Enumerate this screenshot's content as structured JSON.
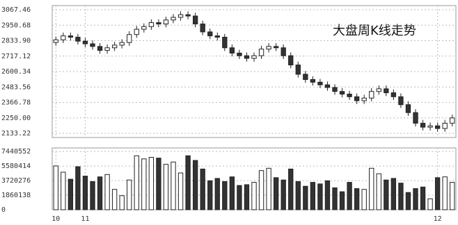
{
  "chart_data": {
    "type": "candlestick",
    "title": "大盘周K线走势",
    "categories": [
      "10",
      null,
      null,
      null,
      "11",
      null,
      null,
      null,
      null,
      null,
      null,
      null,
      null,
      null,
      null,
      null,
      null,
      null,
      null,
      null,
      null,
      null,
      null,
      null,
      null,
      null,
      null,
      null,
      null,
      null,
      null,
      null,
      null,
      null,
      null,
      null,
      null,
      null,
      null,
      null,
      null,
      null,
      null,
      null,
      null,
      null,
      null,
      null,
      null,
      null,
      null,
      null,
      "12",
      null,
      null
    ],
    "open": [
      2820,
      2840,
      2870,
      2860,
      2830,
      2810,
      2790,
      2760,
      2780,
      2800,
      2820,
      2880,
      2920,
      2940,
      2970,
      2960,
      2990,
      3010,
      3030,
      3020,
      2960,
      2900,
      2870,
      2860,
      2780,
      2740,
      2720,
      2700,
      2720,
      2770,
      2790,
      2780,
      2720,
      2650,
      2580,
      2540,
      2520,
      2500,
      2480,
      2450,
      2430,
      2410,
      2380,
      2400,
      2450,
      2470,
      2440,
      2410,
      2350,
      2290,
      2210,
      2180,
      2190,
      2170,
      2210
    ],
    "high": [
      2865,
      2895,
      2895,
      2885,
      2855,
      2835,
      2815,
      2805,
      2825,
      2845,
      2905,
      2945,
      2965,
      2995,
      2995,
      3015,
      3035,
      3055,
      3055,
      3045,
      2985,
      2925,
      2895,
      2885,
      2805,
      2765,
      2745,
      2745,
      2795,
      2815,
      2815,
      2805,
      2745,
      2675,
      2605,
      2565,
      2545,
      2525,
      2505,
      2475,
      2455,
      2435,
      2425,
      2475,
      2495,
      2495,
      2465,
      2435,
      2375,
      2315,
      2235,
      2215,
      2215,
      2235,
      2275
    ],
    "low": [
      2795,
      2815,
      2835,
      2805,
      2785,
      2765,
      2735,
      2735,
      2755,
      2775,
      2795,
      2855,
      2895,
      2915,
      2935,
      2935,
      2965,
      2985,
      2995,
      2935,
      2875,
      2845,
      2835,
      2755,
      2715,
      2695,
      2675,
      2675,
      2695,
      2745,
      2755,
      2695,
      2625,
      2555,
      2515,
      2495,
      2475,
      2455,
      2425,
      2405,
      2385,
      2355,
      2355,
      2375,
      2425,
      2415,
      2385,
      2325,
      2265,
      2185,
      2155,
      2155,
      2145,
      2145,
      2185
    ],
    "close": [
      2840,
      2870,
      2860,
      2830,
      2810,
      2790,
      2760,
      2780,
      2800,
      2820,
      2880,
      2920,
      2940,
      2970,
      2960,
      2990,
      3010,
      3030,
      3020,
      2960,
      2900,
      2870,
      2860,
      2780,
      2740,
      2720,
      2700,
      2720,
      2770,
      2790,
      2780,
      2720,
      2650,
      2580,
      2540,
      2520,
      2500,
      2480,
      2450,
      2430,
      2410,
      2380,
      2400,
      2450,
      2470,
      2440,
      2410,
      2350,
      2290,
      2210,
      2180,
      2190,
      2170,
      2210,
      2250
    ],
    "volume": [
      5600000,
      4800000,
      3900000,
      5500000,
      4300000,
      3600000,
      4200000,
      4500000,
      2600000,
      1800000,
      3800000,
      6900000,
      6500000,
      6700000,
      6600000,
      5800000,
      6100000,
      4700000,
      6900000,
      6300000,
      5200000,
      3700000,
      4000000,
      3600000,
      4200000,
      3100000,
      3200000,
      3500000,
      5000000,
      5300000,
      4100000,
      3800000,
      5200000,
      3600000,
      3000000,
      3500000,
      3300000,
      3700000,
      2800000,
      2300000,
      3500000,
      2700000,
      2600000,
      5300000,
      4600000,
      3800000,
      4000000,
      3400000,
      2200000,
      2700000,
      2900000,
      1400000,
      4100000,
      4200000,
      3500000
    ],
    "ylim": [
      2102,
      3099
    ],
    "yticks": [
      3067.46,
      2950.68,
      {
        "value": 2833.9,
        "label": "2833.90"
      },
      2717.12,
      2600.34,
      2483.56,
      2366.78,
      {
        "value": 2250,
        "label": "2250.00"
      },
      2133.22
    ],
    "vlim": [
      0,
      7900000
    ],
    "vticks": [
      7440552,
      5580414,
      3720276,
      1860138,
      0
    ],
    "grid": true,
    "up_color": "#ffffff",
    "down_color": "#333333"
  }
}
